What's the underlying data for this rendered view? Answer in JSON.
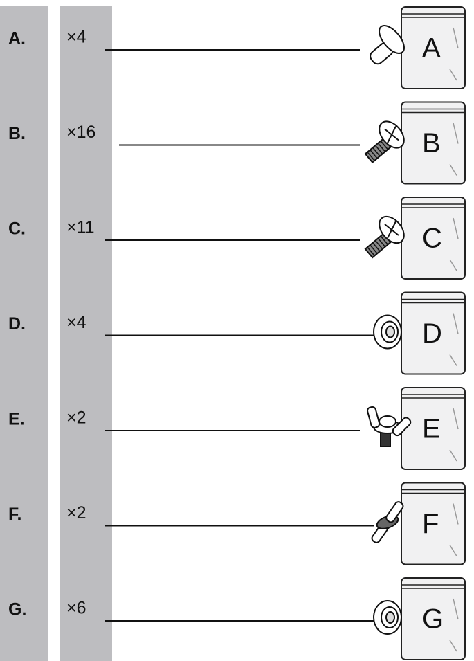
{
  "items": [
    {
      "label": "A.",
      "quantity": "×4",
      "bag": "A"
    },
    {
      "label": "B.",
      "quantity": "×16",
      "bag": "B"
    },
    {
      "label": "C.",
      "quantity": "×11",
      "bag": "C"
    },
    {
      "label": "D.",
      "quantity": "×4",
      "bag": "D"
    },
    {
      "label": "E.",
      "quantity": "×2",
      "bag": "E"
    },
    {
      "label": "F.",
      "quantity": "×2",
      "bag": "F"
    },
    {
      "label": "G.",
      "quantity": "×6",
      "bag": "G"
    }
  ]
}
